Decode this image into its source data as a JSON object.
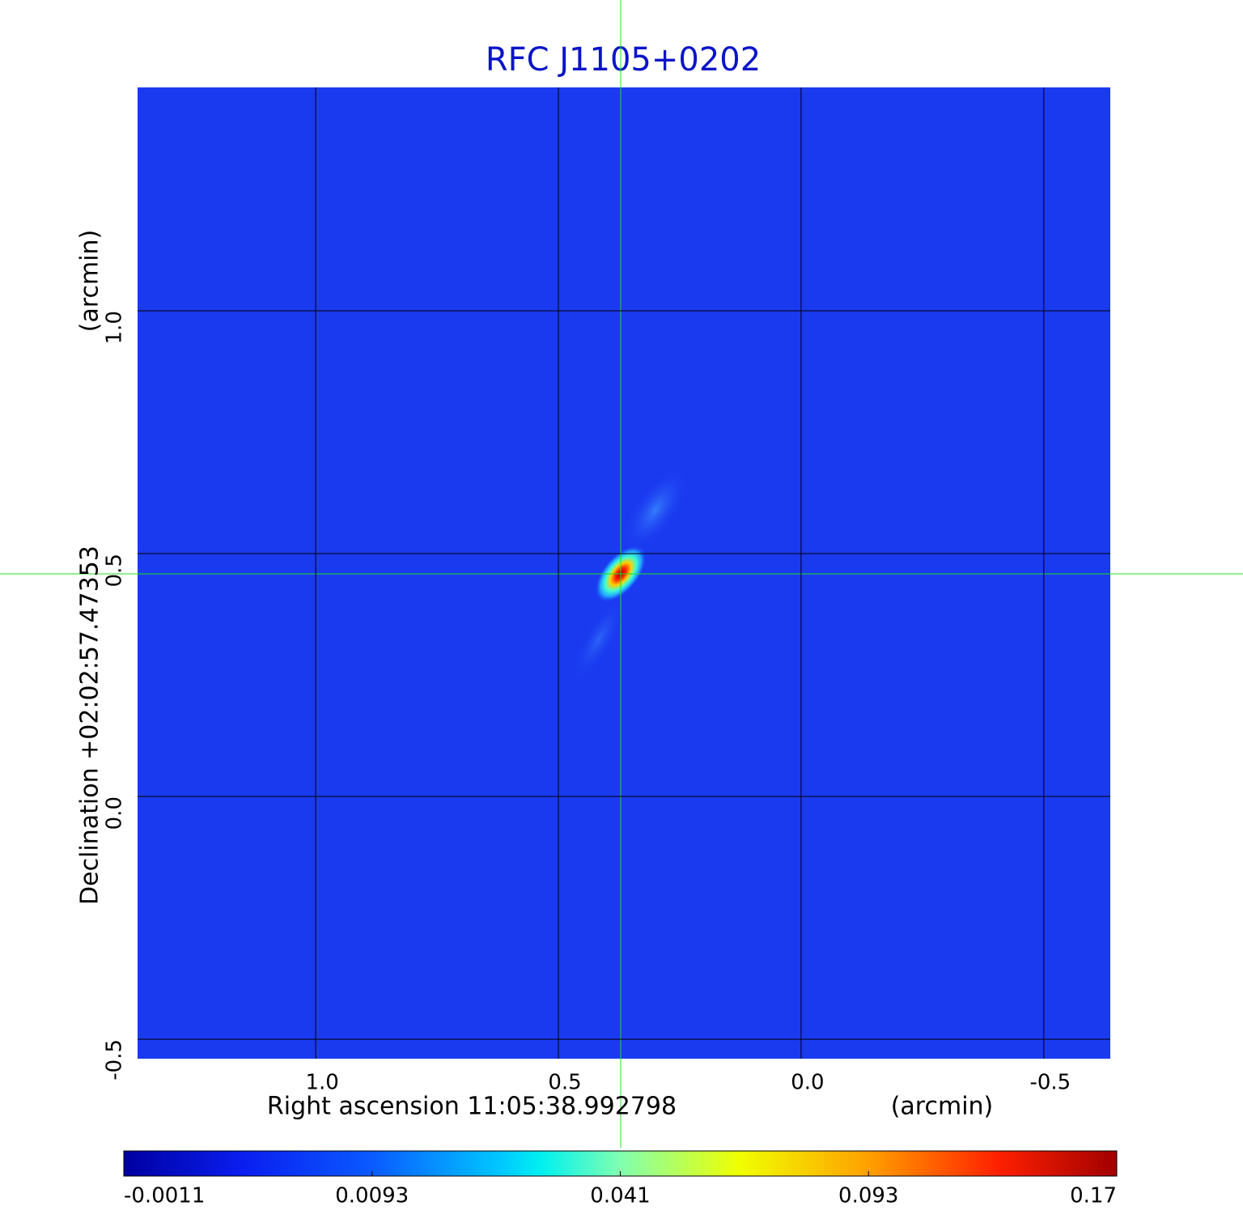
{
  "chart_data": {
    "type": "image",
    "title": "RFC J1105+0202",
    "xlabel": "Right ascension  11:05:38.992798",
    "xunit": "(arcmin)",
    "ylabel": "Declination  +02:02:57.47353",
    "yunit": "(arcmin)",
    "xlim": [
      1.367,
      -0.637
    ],
    "ylim": [
      -0.54,
      1.46
    ],
    "xticks": [
      {
        "value": 1,
        "label": "1.0"
      },
      {
        "value": 0.5,
        "label": "0.5"
      },
      {
        "value": 0,
        "label": "0.0"
      },
      {
        "value": -0.5,
        "label": "-0.5"
      }
    ],
    "yticks": [
      {
        "value": -0.5,
        "label": "-0.5"
      },
      {
        "value": 0,
        "label": "0.0"
      },
      {
        "value": 0.5,
        "label": "0.5"
      },
      {
        "value": 1,
        "label": "1.0"
      }
    ],
    "grid": true,
    "colorbar": {
      "ticks": [
        -0.0011,
        0.0093,
        0.041,
        0.093,
        0.17
      ]
    }
  }
}
